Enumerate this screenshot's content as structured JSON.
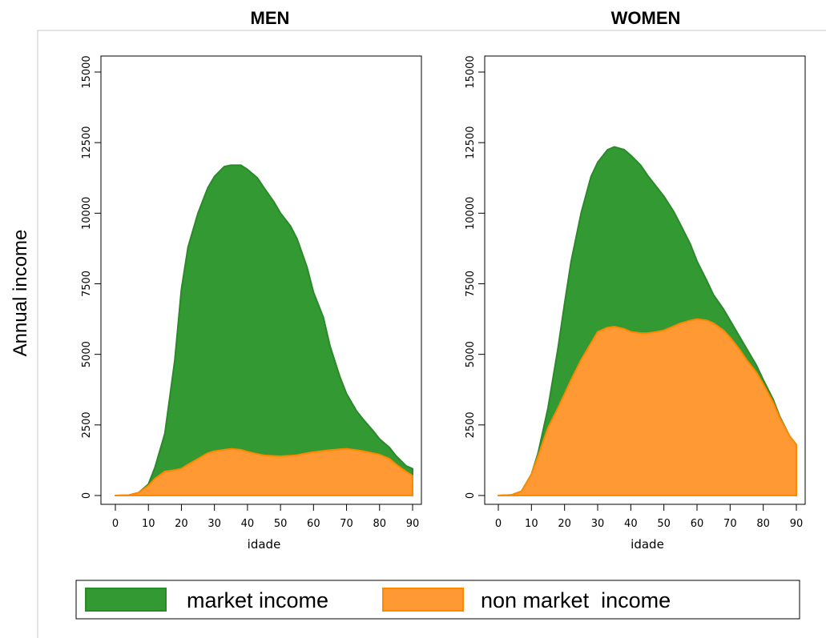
{
  "y_axis_title": "Annual income",
  "colors": {
    "market": "#339933",
    "market_edge": "#2a8a2a",
    "non_market": "#ff9933",
    "non_market_edge": "#ff8800",
    "frame": "#000000",
    "outer_frame": "#c8c8c8"
  },
  "chart_data": [
    {
      "type": "area",
      "title": "MEN",
      "xlabel": "idade",
      "ylabel": "Annual income",
      "xlim": [
        0,
        90
      ],
      "ylim": [
        0,
        15000
      ],
      "x_ticks": [
        0,
        10,
        20,
        30,
        40,
        50,
        60,
        70,
        80,
        90
      ],
      "y_ticks": [
        0,
        2500,
        5000,
        7500,
        10000,
        12500,
        15000
      ],
      "x": [
        0,
        4,
        7,
        10,
        12,
        15,
        18,
        20,
        22,
        25,
        28,
        30,
        33,
        35,
        38,
        40,
        43,
        45,
        48,
        50,
        53,
        55,
        58,
        60,
        63,
        65,
        68,
        70,
        73,
        75,
        78,
        80,
        83,
        85,
        88,
        90
      ],
      "series": [
        {
          "name": "market income",
          "stacked": true,
          "values": [
            0,
            10,
            100,
            400,
            1000,
            2200,
            4800,
            7300,
            8800,
            10000,
            10900,
            11300,
            11650,
            11700,
            11700,
            11550,
            11250,
            10900,
            10400,
            10000,
            9550,
            9100,
            8100,
            7200,
            6300,
            5300,
            4200,
            3600,
            3000,
            2700,
            2300,
            2000,
            1700,
            1400,
            1050,
            950
          ]
        },
        {
          "name": "non market income",
          "stacked": false,
          "values": [
            0,
            10,
            100,
            350,
            600,
            850,
            900,
            950,
            1100,
            1300,
            1500,
            1570,
            1620,
            1650,
            1620,
            1550,
            1470,
            1420,
            1400,
            1390,
            1410,
            1430,
            1500,
            1540,
            1580,
            1610,
            1640,
            1650,
            1610,
            1570,
            1500,
            1450,
            1300,
            1100,
            850,
            700
          ]
        }
      ]
    },
    {
      "type": "area",
      "title": "WOMEN",
      "xlabel": "idade",
      "ylabel": "Annual income",
      "xlim": [
        0,
        90
      ],
      "ylim": [
        0,
        15000
      ],
      "x_ticks": [
        0,
        10,
        20,
        30,
        40,
        50,
        60,
        70,
        80,
        90
      ],
      "y_ticks": [
        0,
        2500,
        5000,
        7500,
        10000,
        12500,
        15000
      ],
      "x": [
        0,
        4,
        7,
        10,
        12,
        15,
        18,
        20,
        22,
        25,
        28,
        30,
        33,
        35,
        38,
        40,
        43,
        45,
        48,
        50,
        53,
        55,
        58,
        60,
        63,
        65,
        68,
        70,
        73,
        75,
        78,
        80,
        83,
        85,
        88,
        90
      ],
      "series": [
        {
          "name": "market income",
          "stacked": true,
          "values": [
            0,
            20,
            150,
            750,
            1500,
            3100,
            5200,
            6800,
            8300,
            10000,
            11300,
            11800,
            12250,
            12350,
            12250,
            12050,
            11700,
            11350,
            10900,
            10600,
            10050,
            9600,
            8900,
            8300,
            7600,
            7100,
            6600,
            6200,
            5600,
            5200,
            4600,
            4100,
            3400,
            2800,
            2100,
            1800
          ]
        },
        {
          "name": "non market income",
          "stacked": false,
          "values": [
            0,
            20,
            150,
            750,
            1400,
            2400,
            3100,
            3600,
            4100,
            4800,
            5400,
            5800,
            5950,
            5980,
            5900,
            5800,
            5750,
            5750,
            5800,
            5850,
            6000,
            6100,
            6200,
            6250,
            6200,
            6100,
            5850,
            5600,
            5150,
            4800,
            4350,
            3950,
            3300,
            2750,
            2100,
            1800
          ]
        }
      ]
    }
  ],
  "legend": {
    "items": [
      {
        "label": "market income",
        "color": "#339933"
      },
      {
        "label": "non market  income",
        "color": "#ff9933"
      }
    ]
  }
}
